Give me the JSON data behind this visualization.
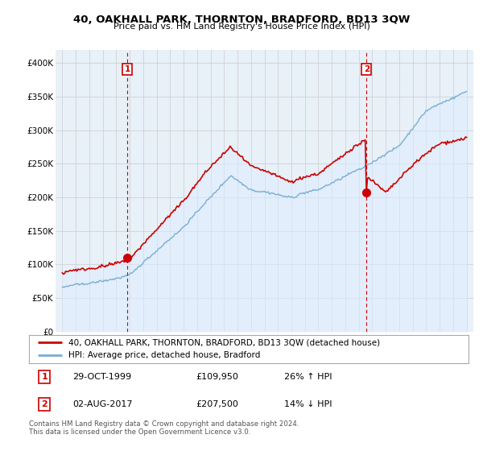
{
  "title": "40, OAKHALL PARK, THORNTON, BRADFORD, BD13 3QW",
  "subtitle": "Price paid vs. HM Land Registry's House Price Index (HPI)",
  "legend_line1": "40, OAKHALL PARK, THORNTON, BRADFORD, BD13 3QW (detached house)",
  "legend_line2": "HPI: Average price, detached house, Bradford",
  "annotation1": {
    "label": "1",
    "date_str": "29-OCT-1999",
    "price_str": "£109,950",
    "pct_str": "26% ↑ HPI"
  },
  "annotation2": {
    "label": "2",
    "date_str": "02-AUG-2017",
    "price_str": "£207,500",
    "pct_str": "14% ↓ HPI"
  },
  "footer": "Contains HM Land Registry data © Crown copyright and database right 2024.\nThis data is licensed under the Open Government Licence v3.0.",
  "price_color": "#cc0000",
  "hpi_color": "#7aadd4",
  "fill_color": "#ddeeff",
  "vline_color": "#cc0000",
  "marker1_x": 1999.83,
  "marker1_y": 109950,
  "marker2_x": 2017.58,
  "marker2_y": 207500,
  "ylim": [
    0,
    420000
  ],
  "xlim": [
    1994.5,
    2025.5
  ],
  "bg_color": "#ffffff",
  "grid_color": "#cccccc",
  "chart_bg": "#e8f0f8"
}
